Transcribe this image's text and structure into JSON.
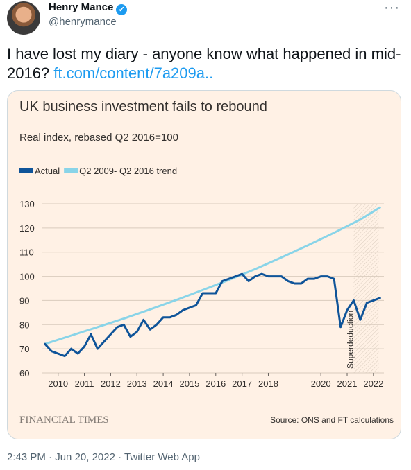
{
  "author": {
    "name": "Henry Mance",
    "handle": "@henrymance",
    "verified": true
  },
  "tweet": {
    "text_before_link": "I have lost my diary - anyone know what happened in mid-2016? ",
    "link_text": "ft.com/content/7a209a.."
  },
  "card": {
    "source_brand": "FINANCIAL TIMES",
    "source_note": "Source: ONS and FT calculations"
  },
  "chart_data": {
    "type": "line",
    "title": "UK business investment fails to rebound",
    "subtitle": "Real index, rebased Q2 2016=100",
    "xlabel": "",
    "ylabel": "",
    "x_tick_labels": [
      "2010",
      "2011",
      "2012",
      "2013",
      "2014",
      "2015",
      "2016",
      "2017",
      "2018",
      "2020",
      "2021",
      "2022"
    ],
    "x_tick_values": [
      2010,
      2011,
      2012,
      2013,
      2014,
      2015,
      2016,
      2017,
      2018,
      2020,
      2021,
      2022
    ],
    "xlim": [
      2009.4,
      2022.4
    ],
    "y_tick_labels": [
      "60",
      "70",
      "80",
      "90",
      "100",
      "110",
      "120",
      "130"
    ],
    "y_tick_values": [
      60,
      70,
      80,
      90,
      100,
      110,
      120,
      130
    ],
    "ylim": [
      60,
      130
    ],
    "grid": "horizontal",
    "legend_position": "top-left",
    "annotation": {
      "text": "Superdeduction",
      "x": 2021.25,
      "shaded_from": 2021.25,
      "shaded_to": 2022.2
    },
    "series": [
      {
        "name": "Actual",
        "color": "#0f5499",
        "x": [
          2009.5,
          2009.75,
          2010.0,
          2010.25,
          2010.5,
          2010.75,
          2011.0,
          2011.25,
          2011.5,
          2011.75,
          2012.0,
          2012.25,
          2012.5,
          2012.75,
          2013.0,
          2013.25,
          2013.5,
          2013.75,
          2014.0,
          2014.25,
          2014.5,
          2014.75,
          2015.0,
          2015.25,
          2015.5,
          2015.75,
          2016.0,
          2016.25,
          2016.5,
          2016.75,
          2017.0,
          2017.25,
          2017.5,
          2017.75,
          2018.0,
          2018.25,
          2018.5,
          2018.75,
          2019.0,
          2019.25,
          2019.5,
          2019.75,
          2020.0,
          2020.25,
          2020.5,
          2020.75,
          2021.0,
          2021.25,
          2021.5,
          2021.75,
          2022.0,
          2022.25
        ],
        "values": [
          72,
          69,
          68,
          67,
          70,
          68,
          71,
          76,
          70,
          73,
          76,
          79,
          80,
          75,
          77,
          82,
          78,
          80,
          83,
          83,
          84,
          86,
          87,
          88,
          93,
          93,
          93,
          98,
          99,
          100,
          101,
          98,
          100,
          101,
          100,
          100,
          100,
          98,
          97,
          97,
          99,
          99,
          100,
          100,
          99,
          79,
          86,
          90,
          82,
          89,
          90,
          91
        ]
      },
      {
        "name": "Q2 2009- Q2 2016 trend",
        "color": "#89d4e8",
        "x": [
          2009.5,
          2010.5,
          2011.5,
          2012.5,
          2013.5,
          2014.5,
          2015.5,
          2016.5,
          2017.5,
          2018.5,
          2019.5,
          2020.5,
          2021.5,
          2022.25
        ],
        "values": [
          72,
          75.5,
          79,
          82.5,
          86.3,
          90.2,
          94.3,
          98.5,
          103,
          107.8,
          112.8,
          118,
          123.5,
          128.5
        ]
      }
    ]
  },
  "footer": {
    "time": "2:43 PM",
    "date": "Jun 20, 2022",
    "client": "Twitter Web App",
    "sep": "·"
  }
}
